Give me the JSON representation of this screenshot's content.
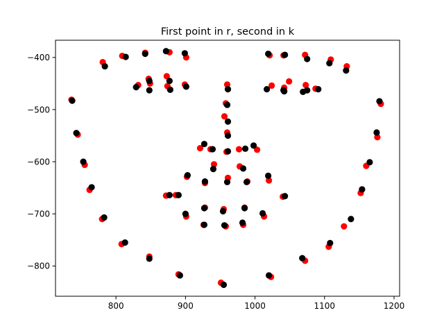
{
  "chart_data": {
    "type": "scatter",
    "title": "First point in r, second in k",
    "xlabel": "",
    "ylabel": "",
    "xlim": [
      713,
      1208
    ],
    "ylim": [
      -858,
      -367
    ],
    "xticks": [
      800,
      900,
      1000,
      1100,
      1200
    ],
    "xtick_labels": [
      "800",
      "900",
      "1000",
      "1100",
      "1200"
    ],
    "yticks": [
      -400,
      -500,
      -600,
      -700,
      -800
    ],
    "ytick_labels": [
      "−400",
      "−500",
      "−600",
      "−700",
      "−800"
    ],
    "grid": false,
    "legend": "none",
    "series": [
      {
        "color": "#ff0000",
        "points": [
          [
            736,
            -481
          ],
          [
            745,
            -548
          ],
          [
            755,
            -606
          ],
          [
            762,
            -654
          ],
          [
            780,
            -710
          ],
          [
            808,
            -758
          ],
          [
            848,
            -782
          ],
          [
            890,
            -816
          ],
          [
            951,
            -832
          ],
          [
            1023,
            -821
          ],
          [
            1072,
            -790
          ],
          [
            1106,
            -763
          ],
          [
            1128,
            -724
          ],
          [
            1152,
            -660
          ],
          [
            1160,
            -608
          ],
          [
            1176,
            -553
          ],
          [
            1181,
            -489
          ],
          [
            781,
            -409
          ],
          [
            809,
            -397
          ],
          [
            832,
            -453
          ],
          [
            842,
            -391
          ],
          [
            847,
            -441
          ],
          [
            849,
            -450
          ],
          [
            873,
            -436
          ],
          [
            874,
            -455
          ],
          [
            877,
            -390
          ],
          [
            899,
            -452
          ],
          [
            901,
            -400
          ],
          [
            1021,
            -396
          ],
          [
            1024,
            -454
          ],
          [
            1041,
            -396
          ],
          [
            1042,
            -458
          ],
          [
            1049,
            -446
          ],
          [
            1072,
            -395
          ],
          [
            1073,
            -453
          ],
          [
            1087,
            -460
          ],
          [
            1109,
            -404
          ],
          [
            1132,
            -417
          ],
          [
            960,
            -452
          ],
          [
            958,
            -488
          ],
          [
            956,
            -513
          ],
          [
            960,
            -544
          ],
          [
            959,
            -581
          ],
          [
            921,
            -574
          ],
          [
            936,
            -576
          ],
          [
            941,
            -605
          ],
          [
            977,
            -576
          ],
          [
            978,
            -609
          ],
          [
            1003,
            -577
          ],
          [
            961,
            -631
          ],
          [
            902,
            -629
          ],
          [
            928,
            -641
          ],
          [
            989,
            -638
          ],
          [
            1020,
            -636
          ],
          [
            886,
            -664
          ],
          [
            872,
            -665
          ],
          [
            1040,
            -667
          ],
          [
            928,
            -688
          ],
          [
            955,
            -691
          ],
          [
            985,
            -688
          ],
          [
            901,
            -705
          ],
          [
            1013,
            -705
          ],
          [
            926,
            -721
          ],
          [
            958,
            -724
          ],
          [
            983,
            -721
          ]
        ]
      },
      {
        "color": "#000000",
        "points": [
          [
            737,
            -483
          ],
          [
            743,
            -545
          ],
          [
            753,
            -600
          ],
          [
            765,
            -649
          ],
          [
            783,
            -707
          ],
          [
            813,
            -755
          ],
          [
            848,
            -786
          ],
          [
            892,
            -818
          ],
          [
            955,
            -836
          ],
          [
            1020,
            -818
          ],
          [
            1068,
            -785
          ],
          [
            1108,
            -756
          ],
          [
            1138,
            -710
          ],
          [
            1154,
            -653
          ],
          [
            1165,
            -601
          ],
          [
            1175,
            -544
          ],
          [
            1179,
            -484
          ],
          [
            784,
            -417
          ],
          [
            814,
            -399
          ],
          [
            829,
            -457
          ],
          [
            842,
            -393
          ],
          [
            848,
            -445
          ],
          [
            848,
            -463
          ],
          [
            872,
            -388
          ],
          [
            877,
            -445
          ],
          [
            878,
            -462
          ],
          [
            899,
            -392
          ],
          [
            901,
            -456
          ],
          [
            1019,
            -393
          ],
          [
            1017,
            -461
          ],
          [
            1043,
            -395
          ],
          [
            1041,
            -463
          ],
          [
            1042,
            -465
          ],
          [
            1069,
            -466
          ],
          [
            1075,
            -463
          ],
          [
            1075,
            -403
          ],
          [
            1091,
            -461
          ],
          [
            1107,
            -411
          ],
          [
            1131,
            -425
          ],
          [
            961,
            -461
          ],
          [
            960,
            -491
          ],
          [
            961,
            -523
          ],
          [
            961,
            -550
          ],
          [
            961,
            -580
          ],
          [
            927,
            -566
          ],
          [
            939,
            -576
          ],
          [
            940,
            -614
          ],
          [
            986,
            -575
          ],
          [
            983,
            -613
          ],
          [
            998,
            -569
          ],
          [
            960,
            -639
          ],
          [
            903,
            -626
          ],
          [
            928,
            -638
          ],
          [
            988,
            -639
          ],
          [
            1019,
            -627
          ],
          [
            890,
            -664
          ],
          [
            877,
            -664
          ],
          [
            1043,
            -666
          ],
          [
            927,
            -689
          ],
          [
            954,
            -695
          ],
          [
            985,
            -689
          ],
          [
            900,
            -700
          ],
          [
            1011,
            -699
          ],
          [
            927,
            -721
          ],
          [
            956,
            -722
          ],
          [
            982,
            -717
          ]
        ]
      }
    ]
  }
}
